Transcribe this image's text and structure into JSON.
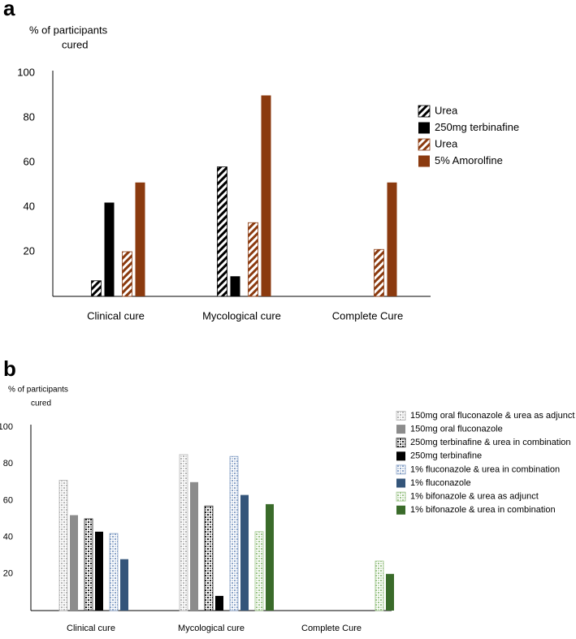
{
  "chart_data": [
    {
      "type": "bar",
      "panel": "a",
      "ylabel_lines": [
        "% of participants",
        "cured"
      ],
      "categories": [
        "Clinical cure",
        "Mycological cure",
        "Complete Cure"
      ],
      "series": [
        {
          "name": "Urea",
          "color": "#000000",
          "pattern": "hatch",
          "values": [
            7,
            58,
            null
          ]
        },
        {
          "name": "250mg terbinafine",
          "color": "#000000",
          "pattern": "solid",
          "values": [
            42,
            9,
            null
          ]
        },
        {
          "name": "Urea",
          "color": "#8b3a0f",
          "pattern": "hatch",
          "values": [
            20,
            33,
            21
          ]
        },
        {
          "name": "5% Amorolfine",
          "color": "#8b3a0f",
          "pattern": "solid",
          "values": [
            51,
            90,
            51
          ]
        }
      ],
      "ylim": [
        0,
        100
      ],
      "yticks": [
        20,
        40,
        60,
        80,
        100
      ]
    },
    {
      "type": "bar",
      "panel": "b",
      "ylabel_lines": [
        "% of participants",
        "cured"
      ],
      "categories": [
        "Clinical cure",
        "Mycological cure",
        "Complete Cure"
      ],
      "series": [
        {
          "name": "150mg oral fluconazole & urea as adjunct",
          "color": "#b5b5b5",
          "pattern": "check",
          "values": [
            71,
            85,
            null
          ]
        },
        {
          "name": "150mg oral fluconazole",
          "color": "#8c8c8c",
          "pattern": "solid",
          "values": [
            52,
            70,
            null
          ]
        },
        {
          "name": "250mg terbinafine & urea in combination",
          "color": "#222222",
          "pattern": "check",
          "values": [
            50,
            57,
            null
          ]
        },
        {
          "name": "250mg terbinafine",
          "color": "#000000",
          "pattern": "solid",
          "values": [
            43,
            8,
            null
          ]
        },
        {
          "name": "1% fluconazole & urea in combination",
          "color": "#8aa3c8",
          "pattern": "check",
          "values": [
            42,
            84,
            null
          ]
        },
        {
          "name": "1% fluconazole",
          "color": "#34557a",
          "pattern": "solid",
          "values": [
            28,
            63,
            null
          ]
        },
        {
          "name": "1% bifonazole & urea as adjunct",
          "color": "#9cc488",
          "pattern": "check",
          "values": [
            null,
            43,
            27
          ]
        },
        {
          "name": "1% bifonazole & urea in combination",
          "color": "#3a6b2a",
          "pattern": "solid",
          "values": [
            null,
            58,
            20
          ]
        }
      ],
      "ylim": [
        0,
        100
      ],
      "yticks": [
        20,
        40,
        60,
        80,
        100
      ]
    }
  ]
}
